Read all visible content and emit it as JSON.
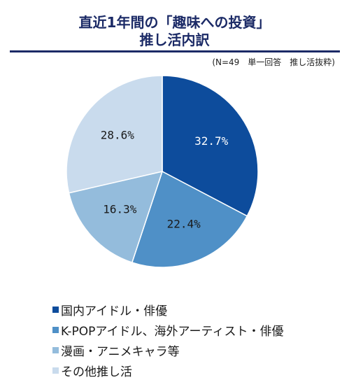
{
  "header": {
    "title_line1": "直近1年間の「趣味への投資」",
    "title_line2": "推し活内訳",
    "note": "(N=49　単一回答　推し活抜粋)"
  },
  "chart_data": {
    "type": "pie",
    "title": "直近1年間の「趣味への投資」推し活内訳",
    "start_angle_deg": 0,
    "direction": "clockwise",
    "legend_position": "bottom-left",
    "slices": [
      {
        "label": "国内アイドル・俳優",
        "value": 32.7,
        "display": "32.7%",
        "color": "#0d4c9c",
        "text_color": "#ffffff"
      },
      {
        "label": "K-POPアイドル、海外アーティスト・俳優",
        "value": 22.4,
        "display": "22.4%",
        "color": "#4f90c7",
        "text_color": "#1a1a1a"
      },
      {
        "label": "漫画・アニメキャラ等",
        "value": 16.3,
        "display": "16.3%",
        "color": "#94bcdc",
        "text_color": "#1a1a1a"
      },
      {
        "label": "その他推し活",
        "value": 28.6,
        "display": "28.6%",
        "color": "#c9dbed",
        "text_color": "#1a1a1a"
      }
    ]
  }
}
